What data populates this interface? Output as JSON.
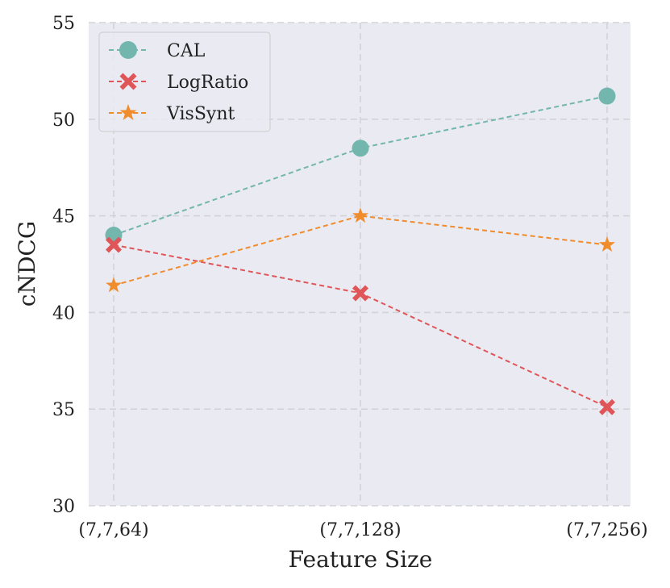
{
  "chart_data": {
    "type": "line",
    "title": "",
    "xlabel": "Feature Size",
    "ylabel": "cNDCG",
    "categories": [
      "(7,7,64)",
      "(7,7,128)",
      "(7,7,256)"
    ],
    "ylim": [
      30,
      55
    ],
    "yticks": [
      30,
      35,
      40,
      45,
      50,
      55
    ],
    "grid": true,
    "legend_position": "top-left",
    "series": [
      {
        "name": "CAL",
        "values": [
          44.0,
          48.5,
          51.2
        ],
        "color": "#72b6ae",
        "marker": "circle",
        "line_style": "dashed"
      },
      {
        "name": "LogRatio",
        "values": [
          43.5,
          41.0,
          35.1
        ],
        "color": "#e05558",
        "marker": "x",
        "line_style": "dashed"
      },
      {
        "name": "VisSynt",
        "values": [
          41.4,
          45.0,
          43.5
        ],
        "color": "#f08c2c",
        "marker": "star",
        "line_style": "dashed"
      }
    ]
  }
}
